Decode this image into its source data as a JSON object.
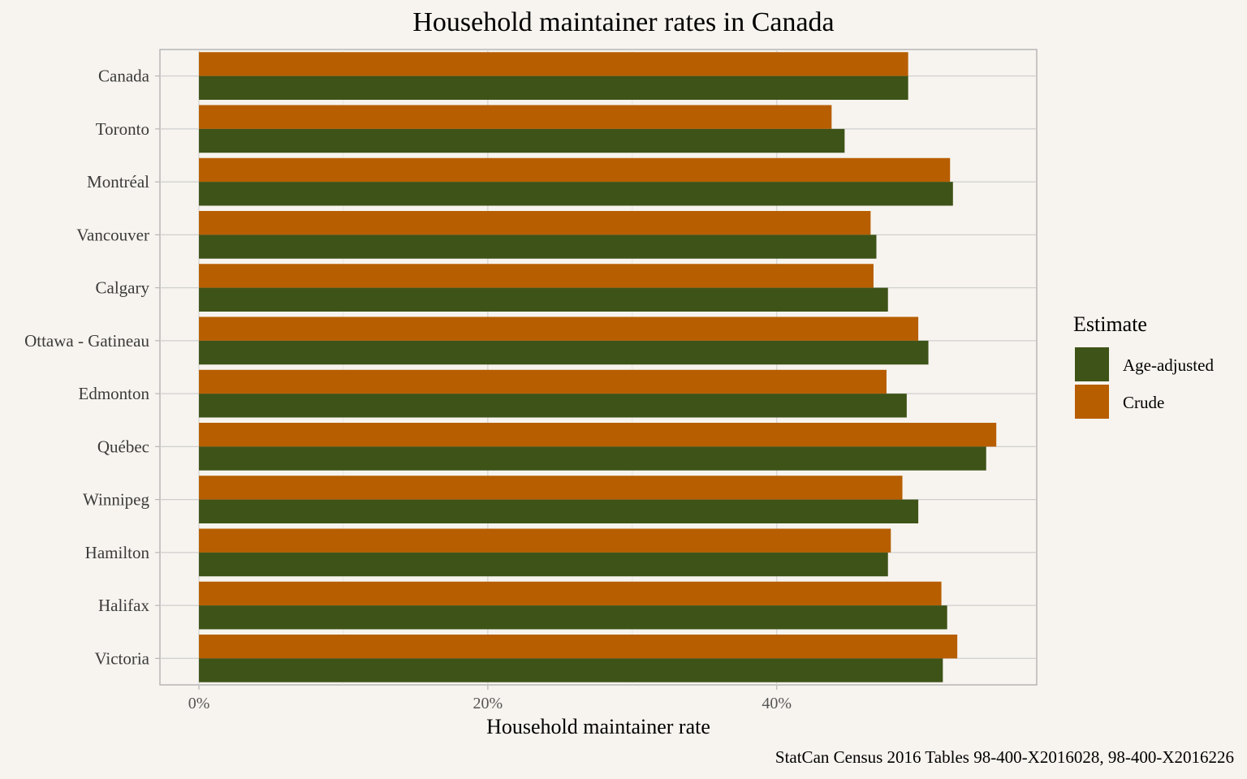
{
  "chart_data": {
    "type": "bar",
    "orientation": "horizontal",
    "title": "Household maintainer rates in Canada",
    "xlabel": "Household maintainer rate",
    "ylabel": "",
    "xlim": [
      -0.027,
      0.58
    ],
    "x_ticks": [
      0,
      0.2,
      0.4
    ],
    "x_tick_labels": [
      "0%",
      "20%",
      "40%"
    ],
    "grid": true,
    "categories": [
      "Canada",
      "Toronto",
      "Montréal",
      "Vancouver",
      "Calgary",
      "Ottawa - Gatineau",
      "Edmonton",
      "Québec",
      "Winnipeg",
      "Hamilton",
      "Halifax",
      "Victoria"
    ],
    "series": [
      {
        "name": "Age-adjusted",
        "color": "#3e5317",
        "values": [
          0.491,
          0.447,
          0.522,
          0.469,
          0.477,
          0.505,
          0.49,
          0.545,
          0.498,
          0.477,
          0.518,
          0.515
        ]
      },
      {
        "name": "Crude",
        "color": "#b75e00",
        "values": [
          0.491,
          0.438,
          0.52,
          0.465,
          0.467,
          0.498,
          0.476,
          0.552,
          0.487,
          0.479,
          0.514,
          0.525
        ]
      }
    ],
    "legend": {
      "title": "Estimate",
      "position": "right",
      "entries": [
        "Age-adjusted",
        "Crude"
      ]
    },
    "caption": "StatCan Census 2016 Tables 98-400-X2016028, 98-400-X2016226"
  }
}
